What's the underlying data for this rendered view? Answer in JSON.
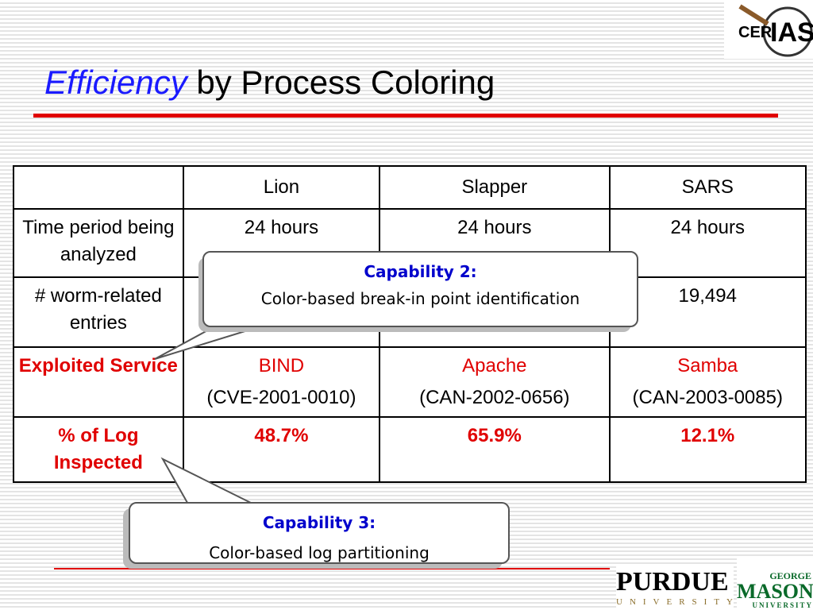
{
  "header": {
    "title_emphasis": "Efficiency",
    "title_rest": "by Process Coloring",
    "logo": {
      "left": "CER",
      "right": "IAS"
    }
  },
  "table": {
    "columns": [
      "Lion",
      "Slapper",
      "SARS"
    ],
    "rows": [
      {
        "label": "Time period being analyzed",
        "cells": [
          [
            "24 hours"
          ],
          [
            "24 hours"
          ],
          [
            "24 hours"
          ]
        ]
      },
      {
        "label": "# worm-related entries",
        "cells": [
          [],
          [],
          [
            "19,494"
          ]
        ]
      },
      {
        "label": "Exploited Service",
        "cells": [
          [
            "BIND",
            "(CVE-2001-0010)"
          ],
          [
            "Apache",
            "(CAN-2002-0656)"
          ],
          [
            "Samba",
            "(CAN-2003-0085)"
          ]
        ]
      },
      {
        "label": "% of Log Inspected",
        "cells": [
          [
            "48.7%"
          ],
          [
            "65.9%"
          ],
          [
            "12.1%"
          ]
        ]
      }
    ]
  },
  "callouts": [
    {
      "heading": "Capability 2:",
      "text": "Color-based break-in point identification"
    },
    {
      "heading": "Capability 3:",
      "text": "Color-based log partitioning"
    }
  ],
  "footer": {
    "purdue": "PURDUE",
    "purdue_sub": "UNIVERSITY",
    "gmu_top": "GEORGE",
    "gmu": "MASON",
    "gmu_sub": "UNIVERSITY"
  }
}
